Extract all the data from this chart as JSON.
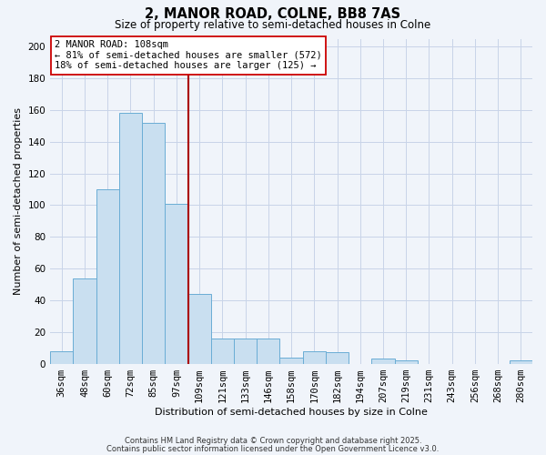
{
  "title": "2, MANOR ROAD, COLNE, BB8 7AS",
  "subtitle": "Size of property relative to semi-detached houses in Colne",
  "xlabel": "Distribution of semi-detached houses by size in Colne",
  "ylabel": "Number of semi-detached properties",
  "categories": [
    "36sqm",
    "48sqm",
    "60sqm",
    "72sqm",
    "85sqm",
    "97sqm",
    "109sqm",
    "121sqm",
    "133sqm",
    "146sqm",
    "158sqm",
    "170sqm",
    "182sqm",
    "194sqm",
    "207sqm",
    "219sqm",
    "231sqm",
    "243sqm",
    "256sqm",
    "268sqm",
    "280sqm"
  ],
  "values": [
    8,
    54,
    110,
    158,
    152,
    101,
    44,
    16,
    16,
    16,
    4,
    8,
    7,
    0,
    3,
    2,
    0,
    0,
    0,
    0,
    2
  ],
  "bar_color": "#c9dff0",
  "bar_edge_color": "#6aadd5",
  "vline_color": "#aa0000",
  "annotation_title": "2 MANOR ROAD: 108sqm",
  "annotation_line1": "← 81% of semi-detached houses are smaller (572)",
  "annotation_line2": "18% of semi-detached houses are larger (125) →",
  "annotation_box_color": "#ffffff",
  "annotation_box_edge": "#cc0000",
  "ylim": [
    0,
    205
  ],
  "yticks": [
    0,
    20,
    40,
    60,
    80,
    100,
    120,
    140,
    160,
    180,
    200
  ],
  "footer1": "Contains HM Land Registry data © Crown copyright and database right 2025.",
  "footer2": "Contains public sector information licensed under the Open Government Licence v3.0.",
  "bg_color": "#f0f4fa",
  "grid_color": "#c8d4e8",
  "title_fontsize": 10.5,
  "subtitle_fontsize": 8.5,
  "axis_label_fontsize": 8,
  "tick_fontsize": 7.5,
  "annotation_fontsize": 7.5,
  "footer_fontsize": 6.0
}
